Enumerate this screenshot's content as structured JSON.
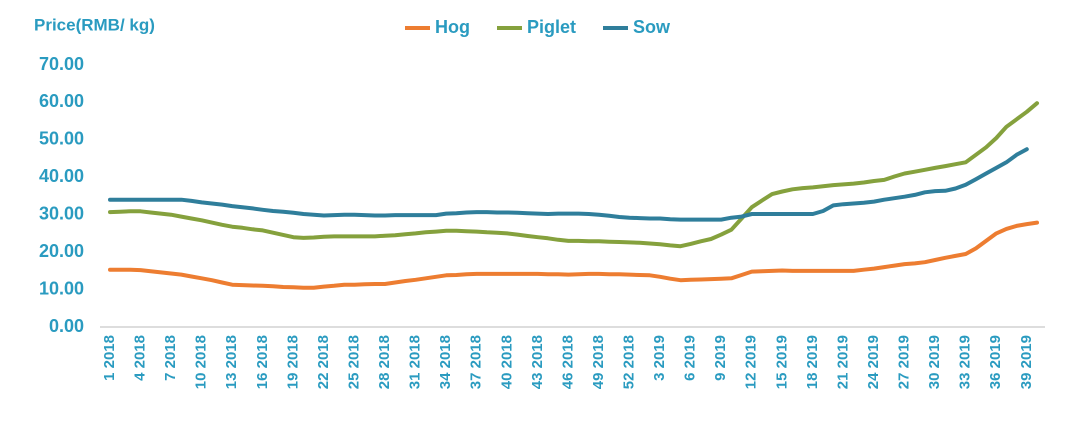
{
  "chart_data": {
    "type": "line",
    "ylabel": "Price(RMB/ kg)",
    "categories": [
      "1 2018",
      null,
      null,
      "4 2018",
      null,
      null,
      "7 2018",
      null,
      null,
      "10 2018",
      null,
      null,
      "13 2018",
      null,
      null,
      "16 2018",
      null,
      null,
      "19 2018",
      null,
      null,
      "22 2018",
      null,
      null,
      "25 2018",
      null,
      null,
      "28 2018",
      null,
      null,
      "31 2018",
      null,
      null,
      "34 2018",
      null,
      null,
      "37 2018",
      null,
      null,
      "40 2018",
      null,
      null,
      "43 2018",
      null,
      null,
      "46 2018",
      null,
      null,
      "49 2018",
      null,
      null,
      "52 2018",
      null,
      null,
      "3 2019",
      null,
      null,
      "6 2019",
      null,
      null,
      "9 2019",
      null,
      null,
      "12 2019",
      null,
      null,
      "15 2019",
      null,
      null,
      "18 2019",
      null,
      null,
      "21 2019",
      null,
      null,
      "24 2019",
      null,
      null,
      "27 2019",
      null,
      null,
      "30 2019",
      null,
      null,
      "33 2019",
      null,
      null,
      "36 2019",
      null,
      null,
      "39 2019",
      null
    ],
    "series": [
      {
        "name": "Hog",
        "color": "#ed7d31",
        "values": [
          15.3,
          15.3,
          15.3,
          15.2,
          14.9,
          14.6,
          14.3,
          14.0,
          13.5,
          13.0,
          12.5,
          11.9,
          11.3,
          11.2,
          11.1,
          11.0,
          10.9,
          10.7,
          10.6,
          10.5,
          10.5,
          10.8,
          11.0,
          11.3,
          11.3,
          11.4,
          11.5,
          11.5,
          11.9,
          12.3,
          12.6,
          13.0,
          13.4,
          13.8,
          13.9,
          14.1,
          14.2,
          14.2,
          14.2,
          14.2,
          14.2,
          14.2,
          14.2,
          14.1,
          14.1,
          14.0,
          14.1,
          14.2,
          14.2,
          14.1,
          14.1,
          14.0,
          13.9,
          13.8,
          13.4,
          12.9,
          12.5,
          12.6,
          12.7,
          12.8,
          12.9,
          13.0,
          13.9,
          14.8,
          14.9,
          15.0,
          15.1,
          15.0,
          15.0,
          15.0,
          15.0,
          15.0,
          15.0,
          15.0,
          15.3,
          15.6,
          16.0,
          16.4,
          16.8,
          17.0,
          17.3,
          17.9,
          18.5,
          19.0,
          19.5,
          21.0,
          23.0,
          25.0,
          26.2,
          27.0,
          27.5,
          27.9
        ]
      },
      {
        "name": "Piglet",
        "color": "#85a13d",
        "values": [
          30.7,
          30.8,
          30.9,
          30.9,
          30.6,
          30.3,
          30.0,
          29.5,
          29.0,
          28.5,
          27.9,
          27.3,
          26.8,
          26.5,
          26.1,
          25.8,
          25.2,
          24.6,
          24.0,
          23.8,
          23.9,
          24.1,
          24.2,
          24.2,
          24.2,
          24.2,
          24.2,
          24.4,
          24.5,
          24.8,
          25.0,
          25.3,
          25.5,
          25.7,
          25.7,
          25.6,
          25.5,
          25.3,
          25.2,
          25.0,
          24.7,
          24.3,
          24.0,
          23.7,
          23.3,
          23.0,
          23.0,
          22.9,
          22.9,
          22.8,
          22.7,
          22.6,
          22.5,
          22.3,
          22.1,
          21.8,
          21.6,
          22.2,
          22.9,
          23.5,
          24.7,
          26.0,
          29.0,
          32.0,
          33.8,
          35.5,
          36.2,
          36.8,
          37.1,
          37.3,
          37.6,
          37.9,
          38.1,
          38.3,
          38.6,
          39.0,
          39.3,
          40.2,
          41.0,
          41.5,
          42.0,
          42.5,
          43.0,
          43.5,
          44.0,
          46.0,
          48.0,
          50.5,
          53.5,
          55.5,
          57.5,
          59.8
        ]
      },
      {
        "name": "Sow",
        "color": "#2f7e9b",
        "values": [
          34.0,
          34.0,
          34.0,
          34.0,
          34.0,
          34.0,
          34.0,
          34.0,
          33.7,
          33.3,
          33.0,
          32.7,
          32.3,
          32.0,
          31.7,
          31.3,
          31.0,
          30.8,
          30.5,
          30.2,
          30.0,
          29.8,
          29.9,
          30.0,
          30.0,
          29.9,
          29.8,
          29.8,
          29.9,
          29.9,
          29.9,
          29.9,
          29.9,
          30.3,
          30.4,
          30.6,
          30.7,
          30.7,
          30.6,
          30.6,
          30.5,
          30.4,
          30.3,
          30.2,
          30.3,
          30.3,
          30.3,
          30.2,
          30.0,
          29.7,
          29.4,
          29.2,
          29.1,
          29.0,
          29.0,
          28.8,
          28.7,
          28.7,
          28.7,
          28.7,
          28.7,
          29.2,
          29.5,
          30.2,
          30.2,
          30.2,
          30.2,
          30.2,
          30.2,
          30.2,
          31.0,
          32.5,
          32.8,
          33.0,
          33.2,
          33.5,
          34.0,
          34.4,
          34.8,
          35.3,
          36.0,
          36.3,
          36.4,
          37.0,
          38.0,
          39.5,
          41.0,
          42.5,
          44.0,
          46.0,
          47.5,
          null
        ]
      }
    ],
    "ylim": [
      0,
      70
    ],
    "yticks": [
      {
        "value": 0,
        "label": "0.00"
      },
      {
        "value": 10,
        "label": "10.00"
      },
      {
        "value": 20,
        "label": "20.00"
      },
      {
        "value": 30,
        "label": "30.00"
      },
      {
        "value": 40,
        "label": "40.00"
      },
      {
        "value": 50,
        "label": "50.00"
      },
      {
        "value": 60,
        "label": "60.00"
      },
      {
        "value": 70,
        "label": "70.00"
      }
    ],
    "grid": false,
    "legend": "top"
  }
}
